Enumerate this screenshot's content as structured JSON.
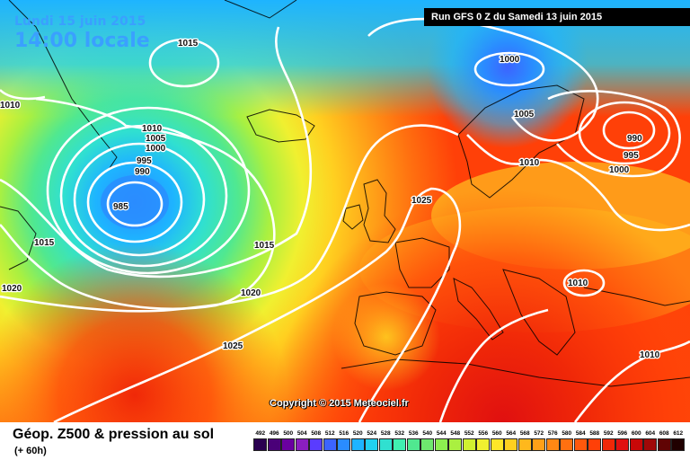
{
  "header": {
    "date": "Lundi 15 juin 2015",
    "time": "14:00 locale",
    "run": "Run GFS 0 Z du Samedi 13 juin 2015"
  },
  "copyright": "Copyright © 2015 Meteociel.fr",
  "legend": {
    "title": "Géop. Z500 & pression au sol",
    "subtitle": "(+ 60h)",
    "scale_values": [
      "492",
      "496",
      "500",
      "504",
      "508",
      "512",
      "516",
      "520",
      "524",
      "528",
      "532",
      "536",
      "540",
      "544",
      "548",
      "552",
      "556",
      "560",
      "564",
      "568",
      "572",
      "576",
      "580",
      "584",
      "588",
      "592",
      "596",
      "600",
      "604",
      "608",
      "612"
    ],
    "scale_colors": [
      "#2a0050",
      "#4a0078",
      "#6a00a0",
      "#8a1ec0",
      "#5a3cff",
      "#3c64ff",
      "#2a8cff",
      "#1eb4ff",
      "#20d0f0",
      "#30e0d0",
      "#40f0b0",
      "#50e890",
      "#6ee86e",
      "#8cf050",
      "#aaf040",
      "#d0f030",
      "#f0f030",
      "#ffe628",
      "#ffd020",
      "#ffb81c",
      "#ffa018",
      "#ff8814",
      "#ff7010",
      "#ff580c",
      "#ff4008",
      "#f02808",
      "#e01010",
      "#c80808",
      "#a00808",
      "#600404",
      "#200000"
    ]
  },
  "isobar_labels": [
    {
      "text": "1015"
    },
    {
      "text": "1010"
    },
    {
      "text": "1010"
    },
    {
      "text": "1005"
    },
    {
      "text": "1000"
    },
    {
      "text": "995"
    },
    {
      "text": "990"
    },
    {
      "text": "985"
    },
    {
      "text": "1015"
    },
    {
      "text": "1020"
    },
    {
      "text": "1015"
    },
    {
      "text": "1020"
    },
    {
      "text": "1025"
    },
    {
      "text": "1025"
    },
    {
      "text": "1000"
    },
    {
      "text": "1005"
    },
    {
      "text": "990"
    },
    {
      "text": "995"
    },
    {
      "text": "1000"
    },
    {
      "text": "1010"
    },
    {
      "text": "1010"
    },
    {
      "text": "1010"
    }
  ]
}
